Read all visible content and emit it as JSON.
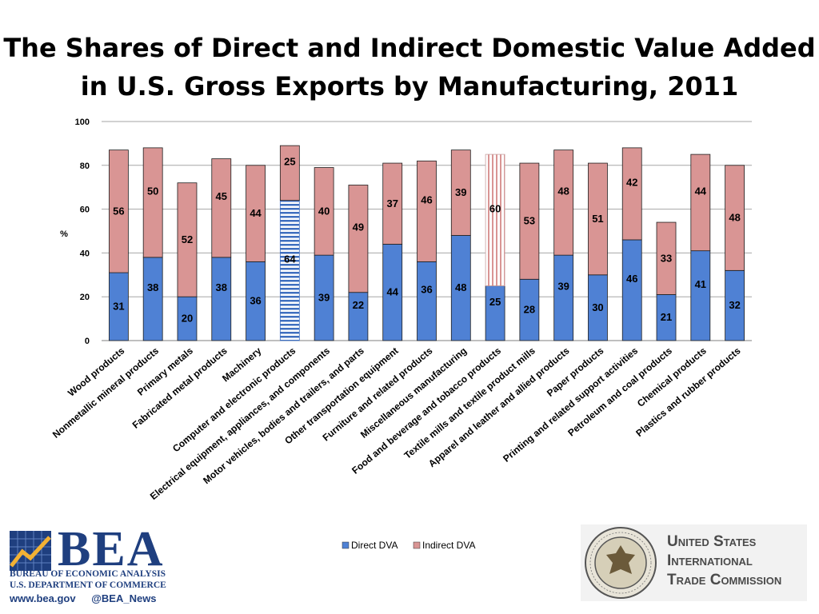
{
  "title": "The Shares of Direct and Indirect Domestic Value Added in U.S. Gross Exports by Manufacturing, 2011",
  "chart_data": {
    "type": "bar",
    "stacked": true,
    "title": "The Shares of Direct and Indirect Domestic Value Added in U.S. Gross Exports by Manufacturing, 2011",
    "xlabel": "",
    "ylabel": "%",
    "ylim": [
      0,
      100
    ],
    "yticks": [
      0,
      20,
      40,
      60,
      80,
      100
    ],
    "grid": true,
    "legend_position": "bottom",
    "categories": [
      "Wood products",
      "Nonmetallic mineral products",
      "Primary metals",
      "Fabricated metal products",
      "Machinery",
      "Computer and electronic products",
      "Electrical equipment, appliances, and components",
      "Motor vehicles, bodies and trailers, and parts",
      "Other transportation equipment",
      "Furniture and related products",
      "Miscellaneous manufacturing",
      "Food and beverage and tobacco products",
      "Textile mills and textile product mills",
      "Apparel and leather and allied products",
      "Paper products",
      "Printing and related support activities",
      "Petroleum and coal products",
      "Chemical products",
      "Plastics and rubber products"
    ],
    "series": [
      {
        "name": "Direct DVA",
        "color": "#4f81d4",
        "values": [
          31,
          38,
          20,
          38,
          36,
          64,
          39,
          22,
          44,
          36,
          48,
          25,
          28,
          39,
          30,
          46,
          21,
          41,
          32
        ]
      },
      {
        "name": "Indirect DVA",
        "color": "#d99594",
        "values": [
          56,
          50,
          52,
          45,
          44,
          25,
          40,
          49,
          37,
          46,
          39,
          60,
          53,
          48,
          51,
          42,
          33,
          44,
          48
        ]
      }
    ],
    "highlighted": [
      {
        "category": "Computer and electronic products",
        "series": "Direct DVA",
        "pattern": "horizontal-stripes"
      },
      {
        "category": "Food and beverage and tobacco products",
        "series": "Indirect DVA",
        "pattern": "vertical-stripes"
      }
    ]
  },
  "logos": {
    "bea": {
      "wordmark": "BEA",
      "line1": "BUREAU OF ECONOMIC ANALYSIS",
      "line2": "U.S. DEPARTMENT OF COMMERCE",
      "website": "www.bea.gov",
      "twitter": "@BEA_News"
    },
    "usitc": {
      "line1": "United States",
      "line2": "International",
      "line3": "Trade Commission"
    }
  }
}
